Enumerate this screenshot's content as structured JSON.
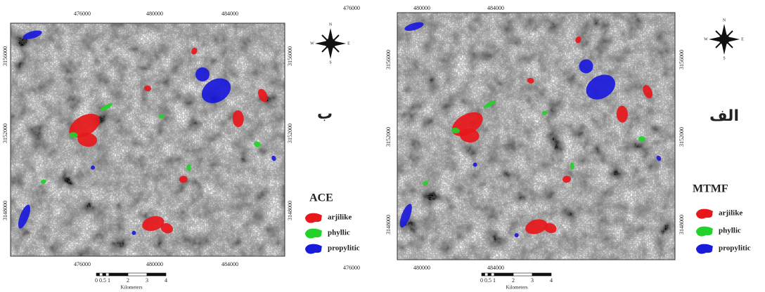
{
  "panels": [
    {
      "label": "ب",
      "method": "ACE",
      "x_ticks": [
        "476000",
        "480000",
        "484000"
      ],
      "y_ticks": [
        "3156000",
        "3152000",
        "3148000"
      ],
      "legend": [
        "arjilike",
        "phyllic",
        "propylitic"
      ],
      "scale": {
        "labels": [
          "0",
          "0.5",
          "1",
          "2",
          "3",
          "4"
        ],
        "unit": "Kilometers"
      },
      "north": {
        "n": "N",
        "s": "S",
        "e": "E",
        "w": "W"
      }
    },
    {
      "label": "الف",
      "method": "MTMF",
      "x_ticks": [
        "476000",
        "480000",
        "484000"
      ],
      "y_ticks": [
        "3156000",
        "3152000",
        "3148000"
      ],
      "legend": [
        "arjilike",
        "phyllic",
        "propylitic"
      ],
      "scale": {
        "labels": [
          "0",
          "0.5",
          "1",
          "2",
          "3",
          "4"
        ],
        "unit": "Kilometers"
      },
      "north": {
        "n": "N",
        "s": "S",
        "e": "E",
        "w": "W"
      }
    }
  ]
}
